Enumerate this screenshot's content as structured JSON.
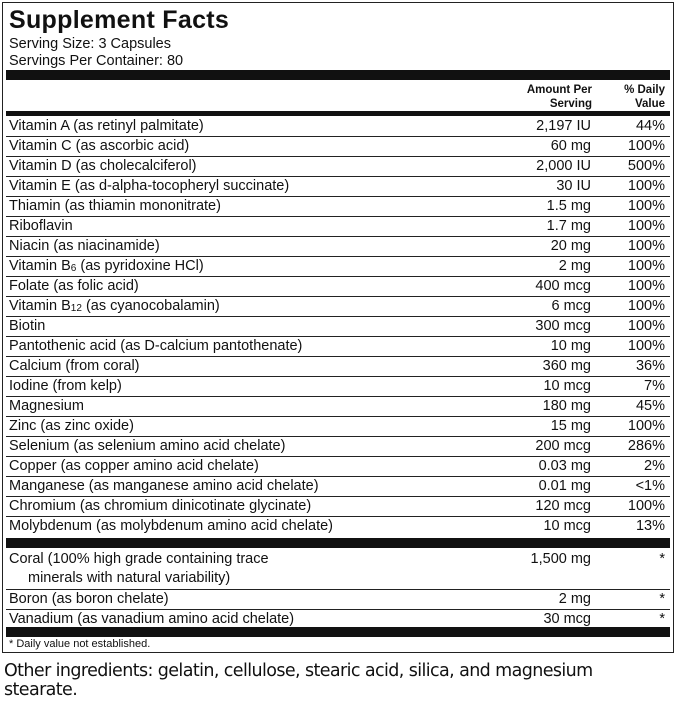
{
  "title": "Supplement Facts",
  "serving_size": "Serving Size: 3 Capsules",
  "servings_per_container": "Servings Per Container: 80",
  "header": {
    "amount_line1": "Amount Per",
    "amount_line2": "Serving",
    "dv_line1": "% Daily",
    "dv_line2": "Value"
  },
  "nutrients": [
    {
      "name": "Vitamin A (as retinyl palmitate)",
      "amount": "2,197 IU",
      "dv": "44%"
    },
    {
      "name": "Vitamin C (as ascorbic acid)",
      "amount": "60 mg",
      "dv": "100%"
    },
    {
      "name": "Vitamin D (as cholecalciferol)",
      "amount": "2,000 IU",
      "dv": "500%"
    },
    {
      "name": "Vitamin E (as d-alpha-tocopheryl succinate)",
      "amount": "30 IU",
      "dv": "100%"
    },
    {
      "name": "Thiamin (as thiamin mononitrate)",
      "amount": "1.5 mg",
      "dv": "100%"
    },
    {
      "name": "Riboflavin",
      "amount": "1.7 mg",
      "dv": "100%"
    },
    {
      "name": "Niacin (as niacinamide)",
      "amount": "20 mg",
      "dv": "100%"
    },
    {
      "name": "Vitamin B",
      "sub": "6",
      "rest": " (as pyridoxine HCl)",
      "amount": "2 mg",
      "dv": "100%"
    },
    {
      "name": "Folate (as folic acid)",
      "amount": "400 mcg",
      "dv": "100%"
    },
    {
      "name": "Vitamin B",
      "sub": "12",
      "rest": " (as cyanocobalamin)",
      "amount": "6 mcg",
      "dv": "100%"
    },
    {
      "name": "Biotin",
      "amount": "300 mcg",
      "dv": "100%"
    },
    {
      "name": "Pantothenic acid (as D-calcium pantothenate)",
      "amount": "10 mg",
      "dv": "100%"
    },
    {
      "name": "Calcium (from coral)",
      "amount": "360 mg",
      "dv": "36%"
    },
    {
      "name": "Iodine (from kelp)",
      "amount": "10 mcg",
      "dv": "7%"
    },
    {
      "name": "Magnesium",
      "amount": "180 mg",
      "dv": "45%"
    },
    {
      "name": "Zinc (as zinc oxide)",
      "amount": "15 mg",
      "dv": "100%"
    },
    {
      "name": "Selenium (as selenium amino acid chelate)",
      "amount": "200 mcg",
      "dv": "286%"
    },
    {
      "name": "Copper (as copper amino acid chelate)",
      "amount": "0.03 mg",
      "dv": "2%"
    },
    {
      "name": "Manganese (as manganese amino acid chelate)",
      "amount": "0.01 mg",
      "dv": "<1%"
    },
    {
      "name": "Chromium (as chromium dinicotinate glycinate)",
      "amount": "120 mcg",
      "dv": "100%"
    },
    {
      "name": "Molybdenum (as molybdenum amino acid chelate)",
      "amount": "10 mcg",
      "dv": "13%"
    }
  ],
  "others": [
    {
      "name": "Coral (100% high grade  containing trace",
      "name2": "minerals with natural variability)",
      "amount": "1,500 mg",
      "dv": "*"
    },
    {
      "name": "Boron (as boron chelate)",
      "amount": "2 mg",
      "dv": "*"
    },
    {
      "name": "Vanadium (as vanadium amino acid chelate)",
      "amount": "30 mcg",
      "dv": "*"
    }
  ],
  "footnote": "* Daily value not established.",
  "other_ingredients": "Other ingredients: gelatin, cellulose, stearic acid, silica, and magnesium stearate."
}
